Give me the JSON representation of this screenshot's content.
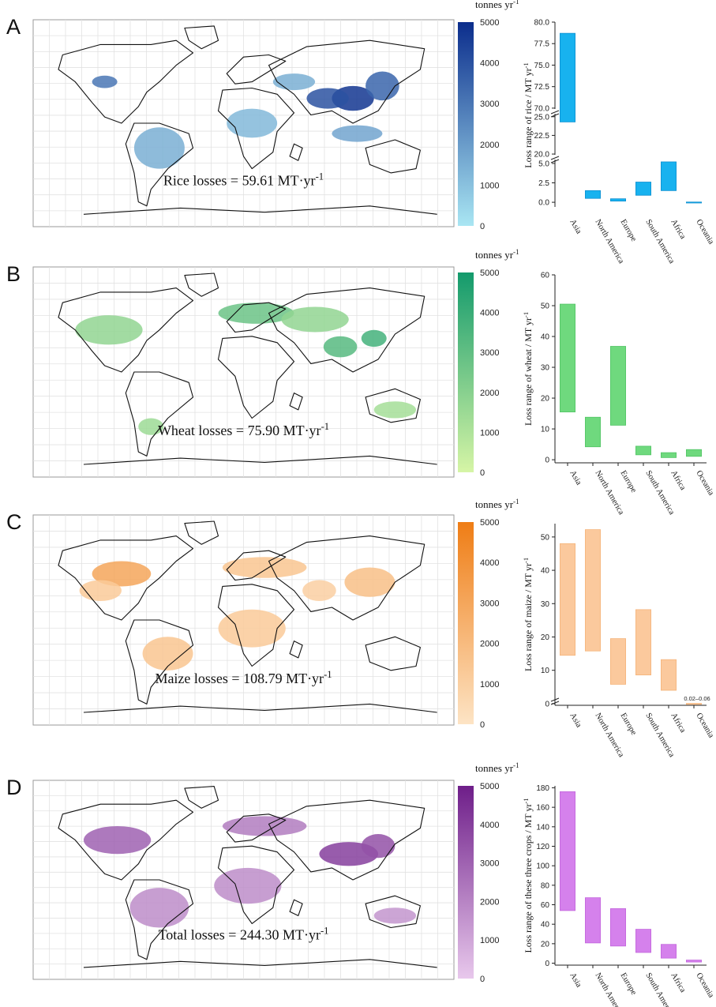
{
  "figure": {
    "colorbar_unit": "tonnes yr",
    "colorbar_unit_sup": "-1",
    "total_unit": "MT·yr",
    "total_unit_sup": "-1",
    "axis_unit": "MT yr",
    "axis_unit_sup": "-1"
  },
  "chart_data": [
    {
      "panel": "A",
      "type": "bar",
      "subtype": "floating-range",
      "crop": "rice",
      "map_total_label": "Rice losses = 59.61",
      "map_total_value": 59.61,
      "colorbar": {
        "min": 0,
        "max": 5000,
        "ticks": [
          0,
          1000,
          2000,
          3000,
          4000,
          5000
        ],
        "low_color": "#a9e6f3",
        "high_color": "#0b2d8c"
      },
      "categories": [
        "Asia",
        "North America",
        "Europe",
        "South America",
        "Africa",
        "Oceania"
      ],
      "ranges": [
        [
          24.3,
          78.7
        ],
        [
          0.5,
          1.5
        ],
        [
          0.15,
          0.45
        ],
        [
          0.9,
          2.6
        ],
        [
          1.5,
          5.2
        ],
        [
          0.0,
          0.03
        ]
      ],
      "ylabel": "Loss range of rice / ",
      "axis_breaks": true,
      "segments": [
        {
          "ylim": [
            -0.6,
            5.5
          ],
          "ticks": [
            0.0,
            2.5,
            5.0
          ]
        },
        {
          "ylim": [
            19.9,
            25.4
          ],
          "ticks": [
            20.0,
            22.5,
            25.0
          ]
        },
        {
          "ylim": [
            69.9,
            80.0
          ],
          "ticks": [
            70.0,
            72.5,
            75.0,
            77.5,
            80.0
          ]
        }
      ],
      "tick_labels": [
        "0.0",
        "2.5",
        "5.0",
        "20.0",
        "22.5",
        "25.0",
        "70.0",
        "72.5",
        "75.0",
        "77.5",
        "80.0"
      ],
      "bar_color": "#18b2ef",
      "bar_edge": "#0e8fd0"
    },
    {
      "panel": "B",
      "type": "bar",
      "subtype": "floating-range",
      "crop": "wheat",
      "map_total_label": "Wheat losses = 75.90",
      "map_total_value": 75.9,
      "colorbar": {
        "min": 0,
        "max": 5000,
        "ticks": [
          0,
          1000,
          2000,
          3000,
          4000,
          5000
        ],
        "low_color": "#d6f5a6",
        "high_color": "#139a6c"
      },
      "categories": [
        "Asia",
        "North America",
        "Europe",
        "South America",
        "Africa",
        "Oceania"
      ],
      "ranges": [
        [
          15.5,
          50.5
        ],
        [
          4.2,
          13.8
        ],
        [
          11.2,
          36.8
        ],
        [
          1.6,
          4.4
        ],
        [
          0.7,
          2.3
        ],
        [
          1.1,
          3.3
        ]
      ],
      "ylabel": "Loss range of wheat / ",
      "ylim": [
        -1,
        60
      ],
      "yticks": [
        0,
        10,
        20,
        30,
        40,
        50,
        60
      ],
      "tick_labels": [
        "0",
        "10",
        "20",
        "30",
        "40",
        "50",
        "60"
      ],
      "bar_color": "#6fd97e",
      "bar_edge": "#52c465"
    },
    {
      "panel": "C",
      "type": "bar",
      "subtype": "floating-range",
      "crop": "maize",
      "map_total_label": "Maize losses = 108.79",
      "map_total_value": 108.79,
      "colorbar": {
        "min": 0,
        "max": 5000,
        "ticks": [
          0,
          1000,
          2000,
          3000,
          4000,
          5000
        ],
        "low_color": "#fde4c5",
        "high_color": "#ef7d15"
      },
      "categories": [
        "Asia",
        "North America",
        "Europe",
        "South America",
        "Africa",
        "Oceania"
      ],
      "ranges": [
        [
          14.5,
          48.0
        ],
        [
          15.8,
          52.2
        ],
        [
          5.8,
          19.5
        ],
        [
          8.6,
          28.2
        ],
        [
          4.0,
          13.2
        ],
        [
          0.02,
          0.06
        ]
      ],
      "annotation": "0.02–0.06",
      "ylabel": "Loss range of maize / ",
      "ylim": [
        -0.5,
        54
      ],
      "yticks": [
        0,
        10,
        20,
        30,
        40,
        50
      ],
      "tick_labels": [
        "0",
        "10",
        "20",
        "30",
        "40",
        "50"
      ],
      "bar_color": "#fbc99d",
      "bar_edge": "#f5b47a"
    },
    {
      "panel": "D",
      "type": "bar",
      "subtype": "floating-range",
      "crop": "total",
      "map_total_label": "Total losses = 244.30",
      "map_total_value": 244.3,
      "colorbar": {
        "min": 0,
        "max": 5000,
        "ticks": [
          0,
          1000,
          2000,
          3000,
          4000,
          5000
        ],
        "low_color": "#e8c8ec",
        "high_color": "#6e1e89"
      },
      "categories": [
        "Asia",
        "North America",
        "Europe",
        "South America",
        "Africa",
        "Oceania"
      ],
      "ranges": [
        [
          54.0,
          176.0
        ],
        [
          20.8,
          67.2
        ],
        [
          17.6,
          56.0
        ],
        [
          11.0,
          34.8
        ],
        [
          5.2,
          19.3
        ],
        [
          1.2,
          3.2
        ]
      ],
      "ylabel": "Loss range of these three crops / ",
      "ylim": [
        -2,
        182
      ],
      "yticks": [
        0,
        20,
        40,
        60,
        80,
        100,
        120,
        140,
        160,
        180
      ],
      "tick_labels": [
        "0",
        "20",
        "40",
        "60",
        "80",
        "100",
        "120",
        "140",
        "160",
        "180"
      ],
      "bar_color": "#d581ec",
      "bar_edge": "#c266dc"
    }
  ]
}
